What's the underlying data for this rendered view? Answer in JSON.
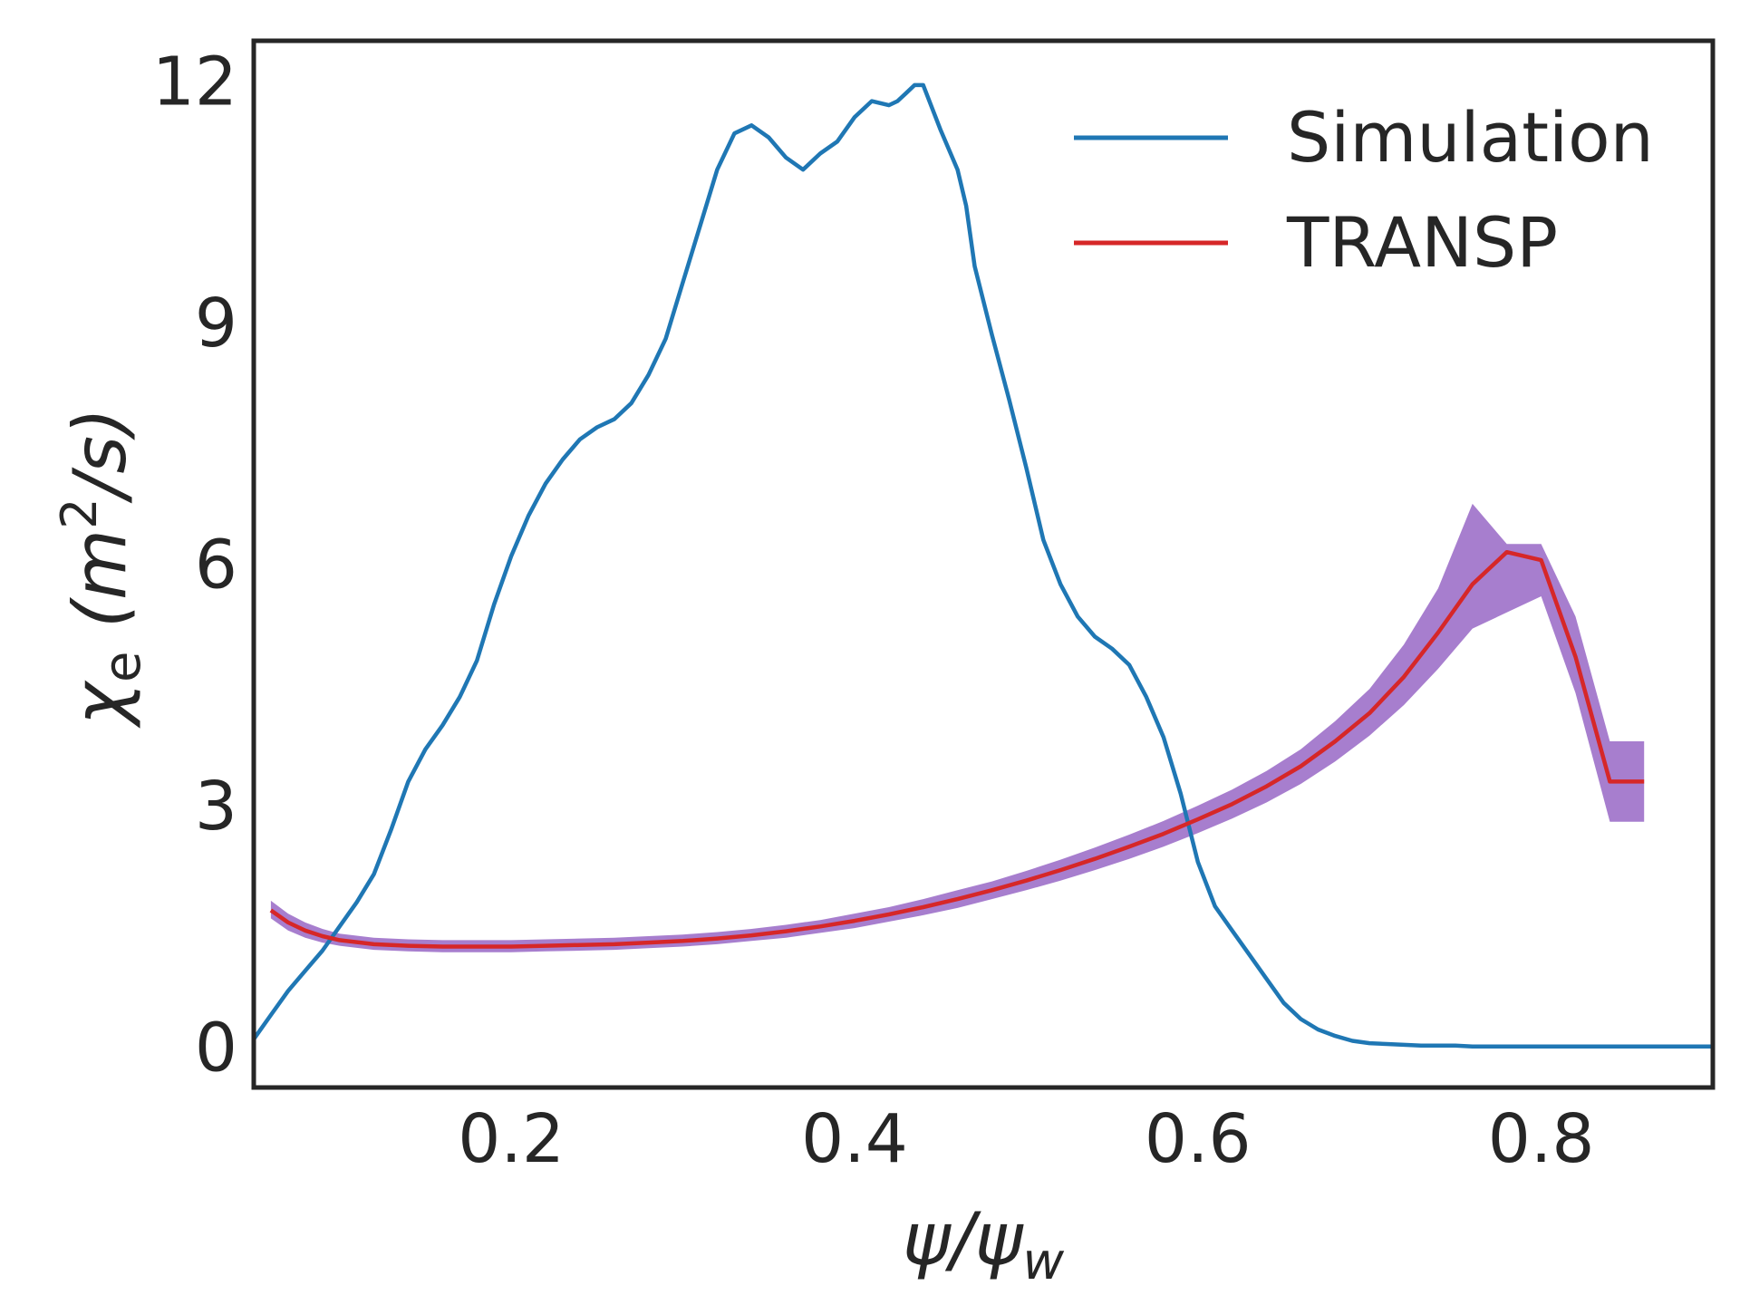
{
  "chart_data": {
    "type": "line",
    "xlabel": "ψ/ψw",
    "xlabel_parts": {
      "main": "ψ/ψ",
      "sub": "w"
    },
    "ylabel": "χe (m²/s)",
    "ylabel_parts": {
      "chi": "χ",
      "chi_sub": "e",
      "paren_open": " (",
      "m": "m",
      "exp": "2",
      "rest": "/s)"
    },
    "xlim": [
      0.05,
      0.9
    ],
    "ylim": [
      -0.5,
      12.5
    ],
    "xticks": [
      0.2,
      0.4,
      0.6,
      0.8
    ],
    "xtick_labels": [
      "0.2",
      "0.4",
      "0.6",
      "0.8"
    ],
    "yticks": [
      0,
      3,
      6,
      9,
      12
    ],
    "ytick_labels": [
      "0",
      "3",
      "6",
      "9",
      "12"
    ],
    "grid": false,
    "legend_position": "top-right",
    "series": [
      {
        "name": "Simulation",
        "color": "#1f77b4",
        "x": [
          0.05,
          0.06,
          0.07,
          0.08,
          0.09,
          0.1,
          0.11,
          0.12,
          0.13,
          0.14,
          0.15,
          0.16,
          0.17,
          0.18,
          0.19,
          0.2,
          0.21,
          0.22,
          0.23,
          0.24,
          0.25,
          0.26,
          0.27,
          0.28,
          0.29,
          0.3,
          0.31,
          0.32,
          0.33,
          0.34,
          0.35,
          0.36,
          0.37,
          0.38,
          0.39,
          0.4,
          0.41,
          0.42,
          0.425,
          0.43,
          0.435,
          0.44,
          0.45,
          0.46,
          0.465,
          0.47,
          0.48,
          0.49,
          0.5,
          0.51,
          0.52,
          0.53,
          0.54,
          0.55,
          0.56,
          0.57,
          0.58,
          0.59,
          0.6,
          0.61,
          0.62,
          0.63,
          0.64,
          0.65,
          0.66,
          0.67,
          0.68,
          0.69,
          0.7,
          0.71,
          0.72,
          0.73,
          0.74,
          0.75,
          0.76,
          0.77,
          0.78,
          0.8,
          0.82,
          0.84,
          0.86,
          0.88,
          0.9
        ],
        "values": [
          0.1,
          0.4,
          0.7,
          0.95,
          1.2,
          1.5,
          1.8,
          2.15,
          2.7,
          3.3,
          3.7,
          4.0,
          4.35,
          4.8,
          5.5,
          6.1,
          6.6,
          7.0,
          7.3,
          7.55,
          7.7,
          7.8,
          8.0,
          8.35,
          8.8,
          9.5,
          10.2,
          10.9,
          11.35,
          11.45,
          11.3,
          11.05,
          10.9,
          11.1,
          11.25,
          11.55,
          11.75,
          11.7,
          11.75,
          11.85,
          11.95,
          11.95,
          11.4,
          10.9,
          10.45,
          9.7,
          8.85,
          8.05,
          7.2,
          6.3,
          5.75,
          5.35,
          5.1,
          4.95,
          4.75,
          4.35,
          3.85,
          3.15,
          2.3,
          1.75,
          1.45,
          1.15,
          0.85,
          0.55,
          0.35,
          0.22,
          0.14,
          0.08,
          0.05,
          0.04,
          0.03,
          0.02,
          0.02,
          0.02,
          0.01,
          0.01,
          0.01,
          0.01,
          0.01,
          0.01,
          0.01,
          0.01,
          0.01
        ]
      },
      {
        "name": "TRANSP",
        "color": "#d62728",
        "band_color": "#8e5ac0",
        "x": [
          0.06,
          0.07,
          0.08,
          0.09,
          0.1,
          0.12,
          0.14,
          0.16,
          0.18,
          0.2,
          0.22,
          0.24,
          0.26,
          0.28,
          0.3,
          0.32,
          0.34,
          0.36,
          0.38,
          0.4,
          0.42,
          0.44,
          0.46,
          0.48,
          0.5,
          0.52,
          0.54,
          0.56,
          0.58,
          0.6,
          0.62,
          0.64,
          0.66,
          0.68,
          0.7,
          0.72,
          0.74,
          0.76,
          0.78,
          0.8,
          0.82,
          0.84,
          0.86
        ],
        "values": [
          1.7,
          1.55,
          1.45,
          1.38,
          1.33,
          1.28,
          1.26,
          1.25,
          1.25,
          1.25,
          1.26,
          1.27,
          1.28,
          1.3,
          1.32,
          1.35,
          1.39,
          1.44,
          1.5,
          1.57,
          1.65,
          1.74,
          1.84,
          1.95,
          2.07,
          2.2,
          2.34,
          2.49,
          2.65,
          2.83,
          3.02,
          3.24,
          3.49,
          3.8,
          4.15,
          4.6,
          5.15,
          5.75,
          6.15,
          6.05,
          4.85,
          3.3,
          3.3
        ],
        "lower": [
          1.6,
          1.45,
          1.36,
          1.3,
          1.26,
          1.21,
          1.19,
          1.18,
          1.18,
          1.18,
          1.19,
          1.2,
          1.21,
          1.23,
          1.25,
          1.28,
          1.32,
          1.36,
          1.42,
          1.48,
          1.56,
          1.64,
          1.73,
          1.84,
          1.95,
          2.07,
          2.2,
          2.34,
          2.49,
          2.66,
          2.84,
          3.04,
          3.27,
          3.55,
          3.87,
          4.25,
          4.7,
          5.2,
          5.4,
          5.6,
          4.4,
          2.8,
          2.8
        ],
        "upper": [
          1.82,
          1.66,
          1.55,
          1.47,
          1.41,
          1.36,
          1.34,
          1.33,
          1.33,
          1.33,
          1.34,
          1.35,
          1.36,
          1.38,
          1.4,
          1.43,
          1.47,
          1.52,
          1.58,
          1.66,
          1.74,
          1.84,
          1.95,
          2.06,
          2.19,
          2.33,
          2.48,
          2.64,
          2.81,
          3.0,
          3.2,
          3.43,
          3.7,
          4.05,
          4.45,
          5.0,
          5.7,
          6.75,
          6.25,
          6.25,
          5.35,
          3.8,
          3.8
        ]
      }
    ]
  }
}
